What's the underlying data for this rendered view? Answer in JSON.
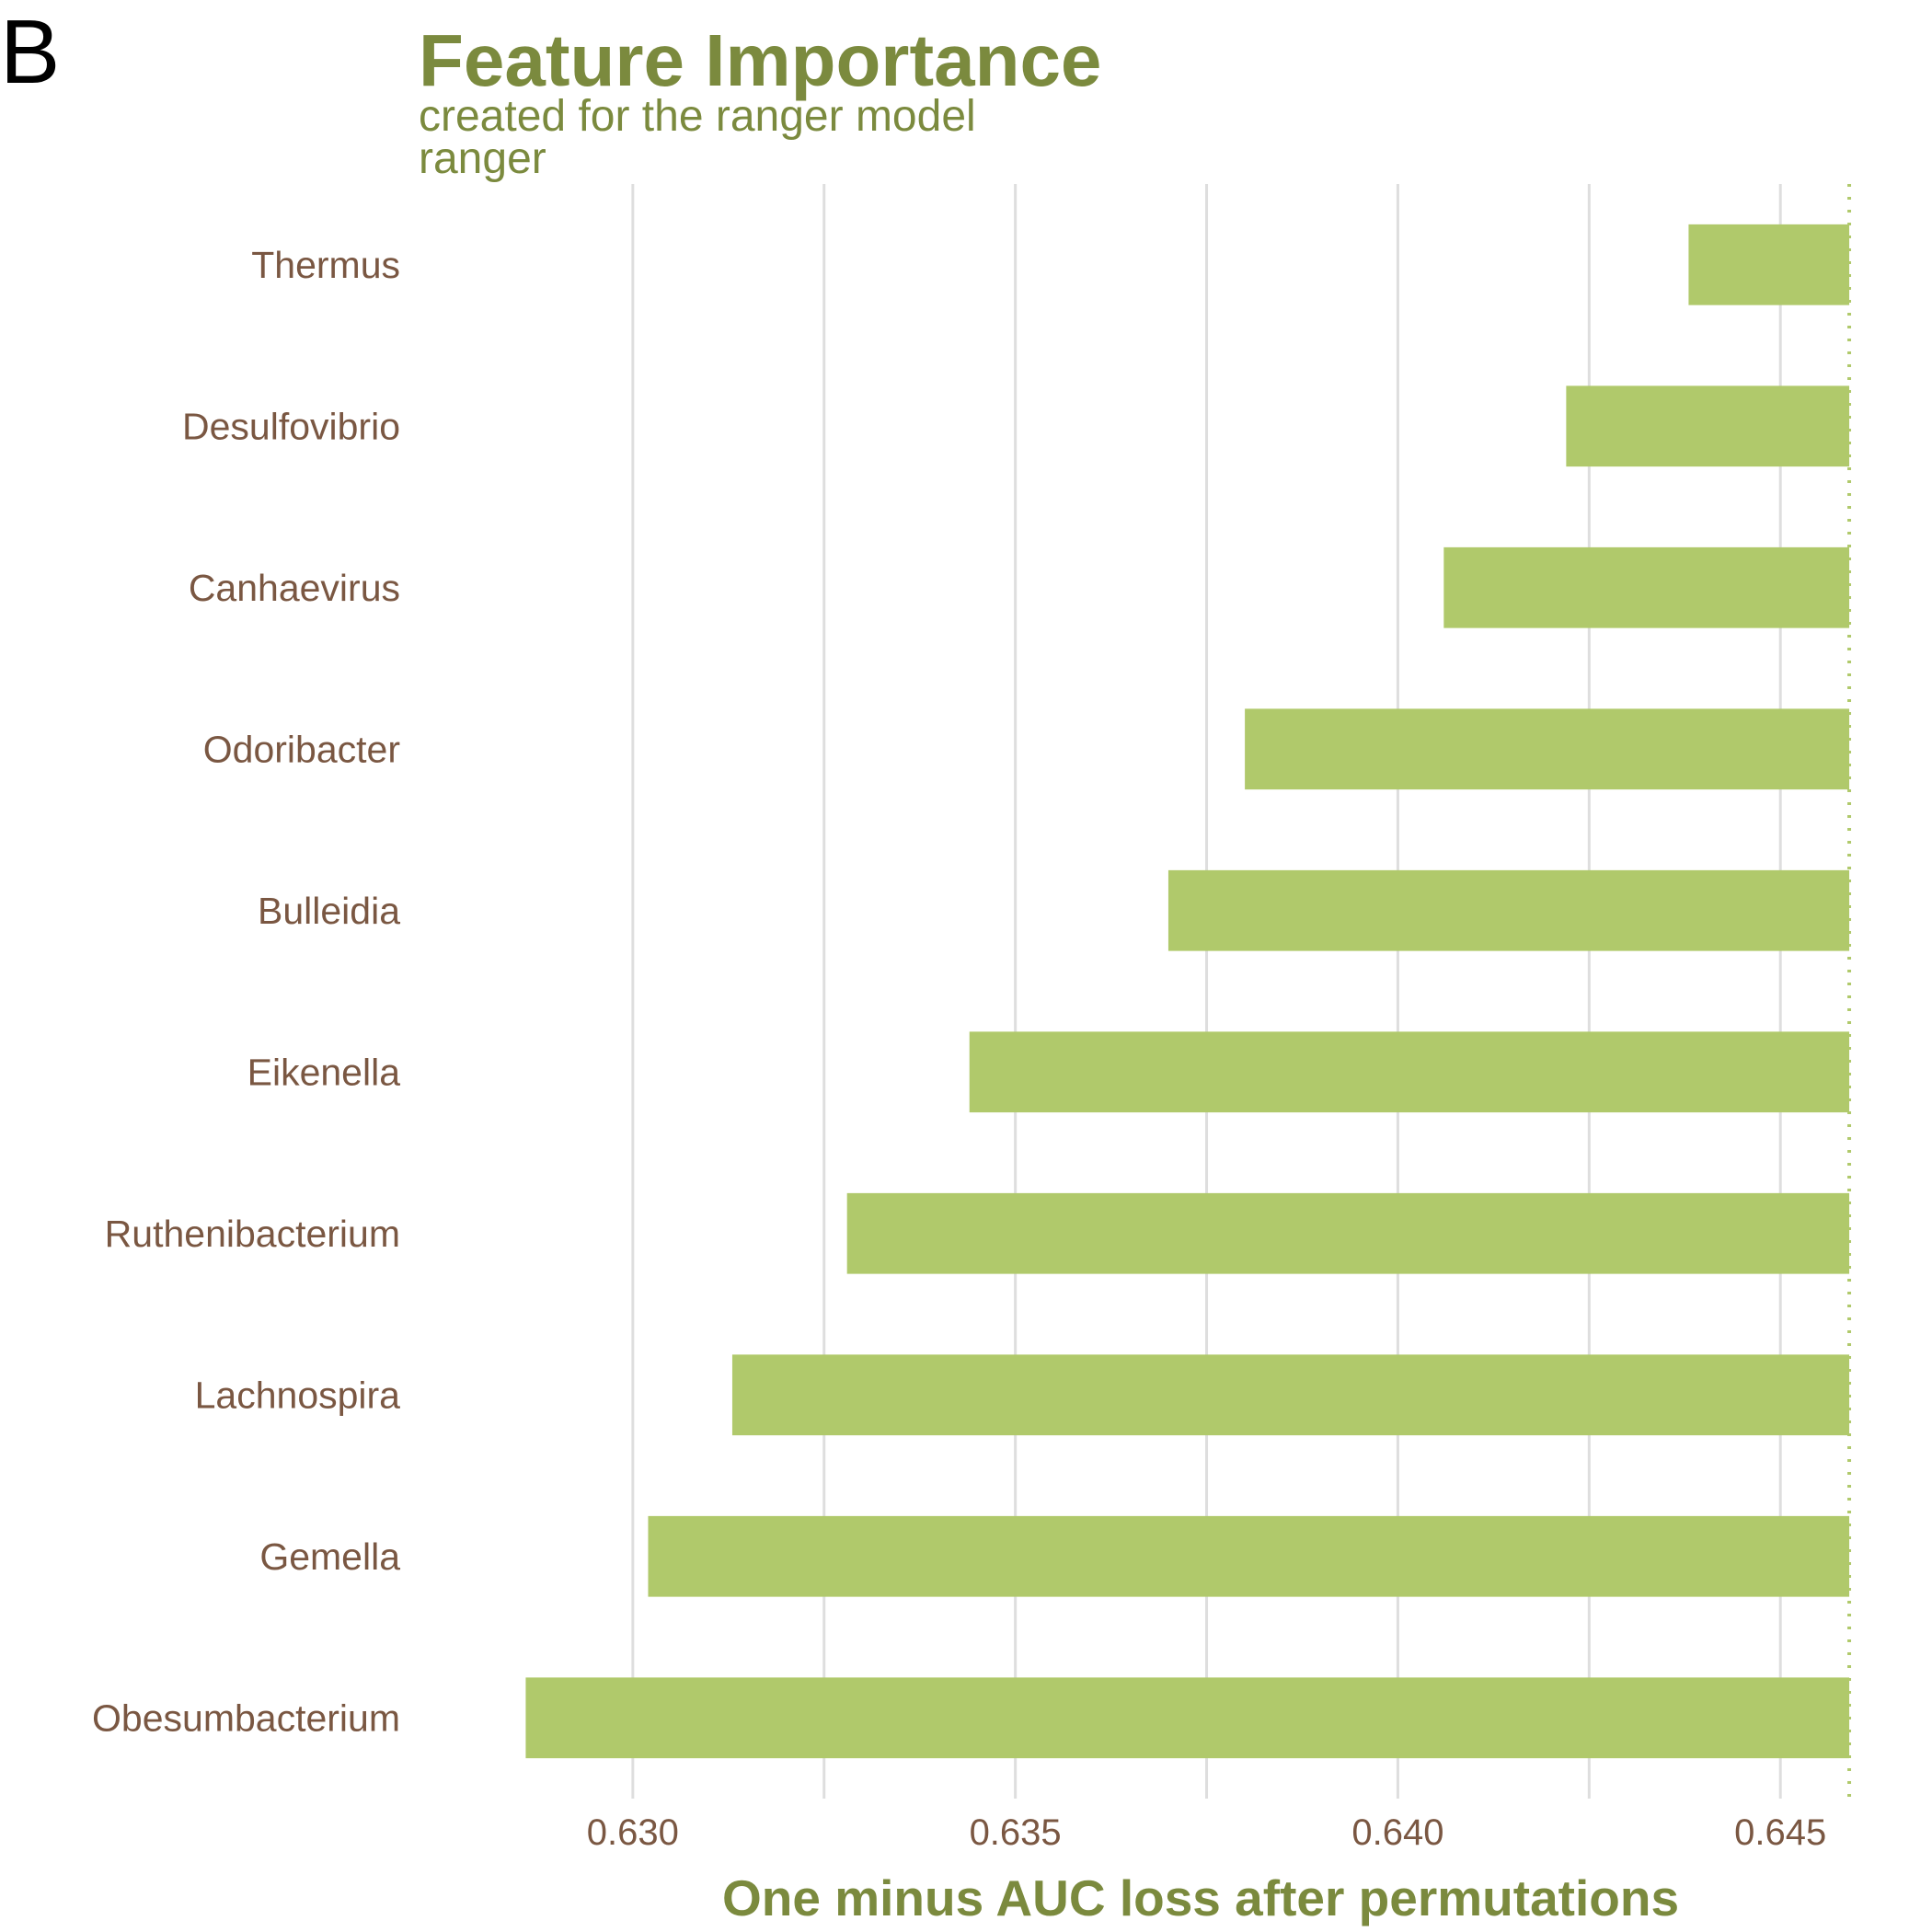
{
  "panel_label": "B",
  "colors": {
    "bar": "#b0c96b",
    "title": "#7b8a3e",
    "label": "#7a5742",
    "grid": "#dedede",
    "reference_line": "#b0c96b"
  },
  "chart_data": {
    "type": "bar",
    "orientation": "horizontal",
    "title": "Feature Importance",
    "subtitle": [
      "created for the ranger model",
      "ranger"
    ],
    "xlabel": "One minus AUC loss after permutations",
    "ylabel": "",
    "baseline": 0.6459,
    "categories": [
      "Thermus",
      "Desulfovibrio",
      "Canhaevirus",
      "Odoribacter",
      "Bulleidia",
      "Eikenella",
      "Ruthenibacterium",
      "Lachnospira",
      "Gemella",
      "Obesumbacterium"
    ],
    "values": [
      0.6438,
      0.6422,
      0.6406,
      0.638,
      0.637,
      0.6344,
      0.6328,
      0.6313,
      0.6302,
      0.6286
    ],
    "xticks": [
      0.63,
      0.635,
      0.64,
      0.645
    ],
    "xtick_labels": [
      "0.630",
      "0.635",
      "0.640",
      "0.645"
    ],
    "xlim": [
      0.6272,
      0.6462
    ],
    "grid": true,
    "legend": "none"
  }
}
